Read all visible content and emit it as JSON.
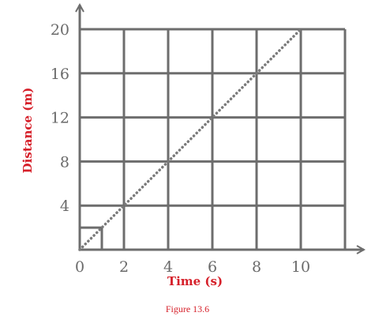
{
  "chart_data": {
    "type": "line",
    "xlabel": "Time (s)",
    "ylabel": "Distance (m)",
    "xlim": [
      0,
      12
    ],
    "ylim": [
      0,
      20
    ],
    "x_ticks": [
      0,
      2,
      4,
      6,
      8,
      10
    ],
    "x_tick_labels": [
      "0",
      "2",
      "4",
      "6",
      "8",
      "10"
    ],
    "y_ticks": [
      4,
      8,
      12,
      16,
      20
    ],
    "y_tick_labels": [
      "4",
      "8",
      "12",
      "16",
      "20"
    ],
    "grid": true,
    "line_style": "dotted",
    "series": [
      {
        "x": [
          0,
          2,
          4,
          6,
          8,
          10
        ],
        "y": [
          0,
          4,
          8,
          12,
          16,
          20
        ]
      }
    ],
    "annotations": [
      {
        "type": "rectangle",
        "x": [
          0,
          1
        ],
        "y": [
          0,
          2
        ]
      }
    ],
    "colors": {
      "grid": "#6d6d6d",
      "line": "#7a7a7a",
      "labels": "#d6202a",
      "ticks": "#6a6a6a"
    }
  },
  "caption": "Figure 13.6"
}
